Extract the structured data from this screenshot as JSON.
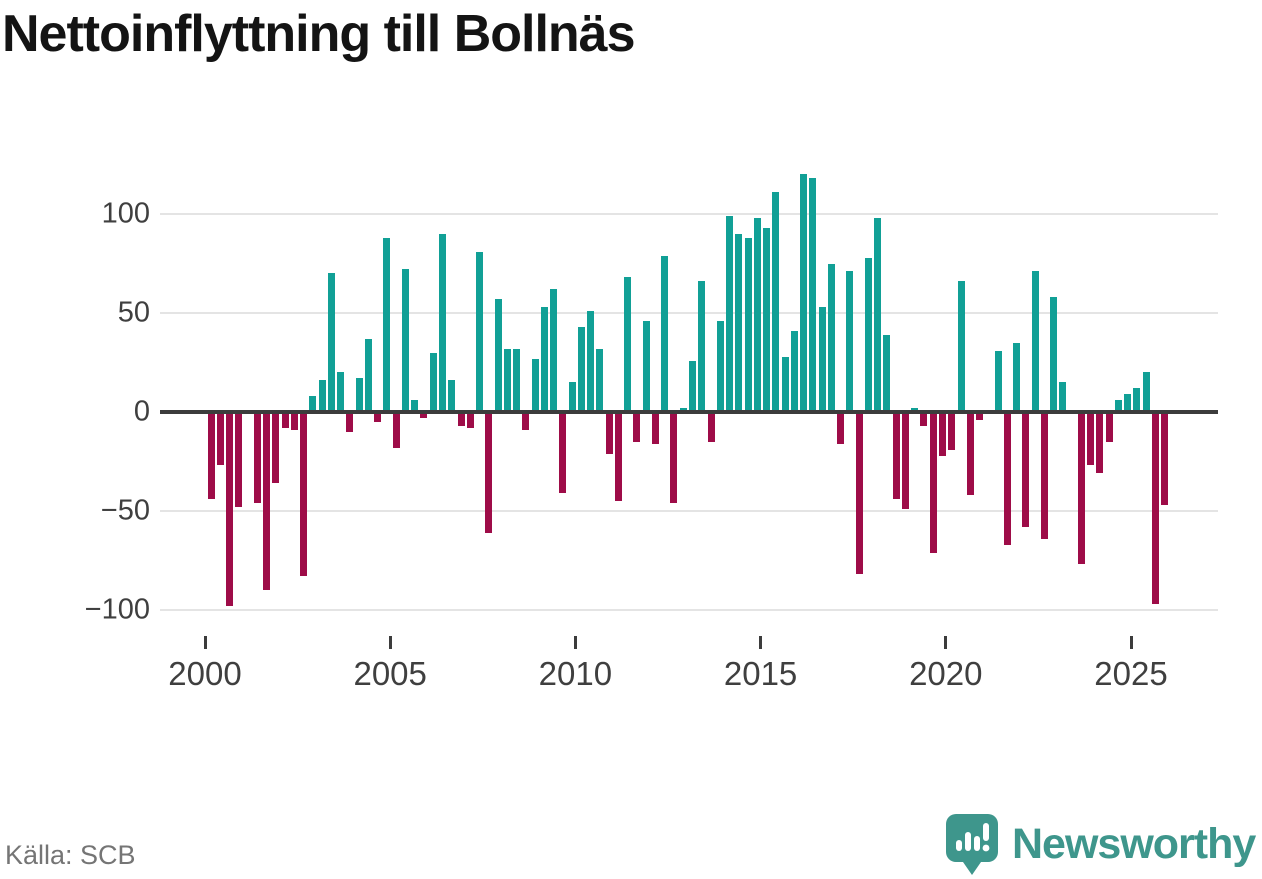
{
  "title": "Nettoinflyttning till Bollnäs",
  "source": "Källa: SCB",
  "brand": {
    "name": "Newsworthy",
    "color": "#3e968c"
  },
  "colors": {
    "positive": "#11a096",
    "negative": "#9e0c48",
    "zero_line": "#3c3c3c",
    "gridline": "#e4e4e4",
    "title_text": "#141414",
    "axis_text": "#3f3f3f",
    "source_text": "#757575"
  },
  "chart_data": {
    "type": "bar",
    "title": "Nettoinflyttning till Bollnäs",
    "xlabel": "",
    "ylabel": "",
    "period": "quarterly",
    "start_period": "2000-Q1",
    "end_period": "2025-Q4",
    "ylim": [
      -110,
      125
    ],
    "grid": "horizontal",
    "y_ticks": [
      100,
      50,
      0,
      -50,
      -100
    ],
    "y_tick_labels": [
      "100",
      "50",
      "0",
      "−50",
      "−100"
    ],
    "x_tick_years": [
      2000,
      2005,
      2010,
      2015,
      2020,
      2025
    ],
    "x_tick_labels": [
      "2000",
      "2005",
      "2010",
      "2015",
      "2020",
      "2025"
    ],
    "series": [
      {
        "name": "Nettoinflyttning",
        "values": [
          -44,
          -27,
          -98,
          -48,
          0,
          -46,
          -90,
          -36,
          -8,
          -9,
          -83,
          8,
          16,
          70,
          20,
          -10,
          17,
          37,
          -5,
          88,
          -18,
          72,
          6,
          -3,
          30,
          90,
          16,
          -7,
          -8,
          81,
          -61,
          57,
          32,
          32,
          -9,
          27,
          53,
          62,
          -41,
          15,
          43,
          51,
          32,
          -21,
          -45,
          68,
          -15,
          46,
          -16,
          79,
          -46,
          2,
          26,
          66,
          -15,
          46,
          99,
          90,
          88,
          98,
          93,
          111,
          28,
          41,
          120,
          118,
          53,
          75,
          -16,
          71,
          -82,
          78,
          98,
          39,
          -44,
          -49,
          2,
          -7,
          -71,
          -22,
          -19,
          66,
          -42,
          -4,
          0,
          31,
          -67,
          35,
          -58,
          71,
          -64,
          58,
          15,
          0,
          -77,
          -27,
          -31,
          -15,
          6,
          9,
          12,
          20,
          -97,
          -47
        ]
      }
    ]
  }
}
